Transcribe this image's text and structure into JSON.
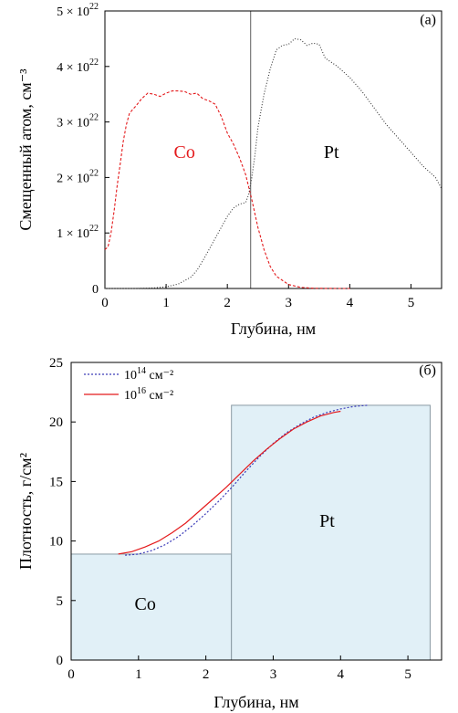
{
  "chart_data": [
    {
      "type": "line",
      "panel_label": "(а)",
      "xlabel": "Глубина, нм",
      "ylabel": "Смещенный атом, см⁻³",
      "xlim": [
        0,
        5.5
      ],
      "ylim": [
        0,
        5e+22
      ],
      "xticks": [
        {
          "v": 0,
          "label": "0"
        },
        {
          "v": 1,
          "label": "1"
        },
        {
          "v": 2,
          "label": "2"
        },
        {
          "v": 3,
          "label": "3"
        },
        {
          "v": 4,
          "label": "4"
        },
        {
          "v": 5,
          "label": "5"
        }
      ],
      "yticks": [
        {
          "v": 0,
          "mant": "0",
          "exp": ""
        },
        {
          "v": 1e+22,
          "mant": "1 × 10",
          "exp": "22"
        },
        {
          "v": 2e+22,
          "mant": "2 × 10",
          "exp": "22"
        },
        {
          "v": 3e+22,
          "mant": "3 × 10",
          "exp": "22"
        },
        {
          "v": 4e+22,
          "mant": "4 × 10",
          "exp": "22"
        },
        {
          "v": 5e+22,
          "mant": "5 × 10",
          "exp": "22"
        }
      ],
      "interface_x": 2.38,
      "series": [
        {
          "name": "Co",
          "color": "#e41a1c",
          "dash": "3,2",
          "x": [
            0,
            0.05,
            0.1,
            0.15,
            0.2,
            0.25,
            0.3,
            0.35,
            0.4,
            0.45,
            0.5,
            0.6,
            0.7,
            0.8,
            0.9,
            1.0,
            1.1,
            1.2,
            1.3,
            1.4,
            1.5,
            1.6,
            1.7,
            1.8,
            1.9,
            2.0,
            2.1,
            2.2,
            2.3,
            2.4,
            2.5,
            2.6,
            2.7,
            2.8,
            3.0,
            3.2,
            3.4,
            3.6,
            3.8,
            4.0
          ],
          "y": [
            7e+21,
            7.5e+21,
            1e+22,
            1.4e+22,
            1.85e+22,
            2.25e+22,
            2.65e+22,
            2.95e+22,
            3.15e+22,
            3.22e+22,
            3.28e+22,
            3.42e+22,
            3.52e+22,
            3.5e+22,
            3.46e+22,
            3.52e+22,
            3.56e+22,
            3.56e+22,
            3.55e+22,
            3.5e+22,
            3.52e+22,
            3.42e+22,
            3.38e+22,
            3.32e+22,
            3.1e+22,
            2.8e+22,
            2.6e+22,
            2.35e+22,
            2.05e+22,
            1.6e+22,
            1.1e+22,
            7e+21,
            4e+21,
            2.2e+21,
            7e+20,
            2e+20,
            5e+19,
            1e+19,
            0,
            0
          ]
        },
        {
          "name": "Pt",
          "color": "#333333",
          "dash": "1,2",
          "x": [
            0,
            0.5,
            0.8,
            1.0,
            1.2,
            1.4,
            1.5,
            1.6,
            1.7,
            1.8,
            1.9,
            2.0,
            2.1,
            2.2,
            2.3,
            2.35,
            2.4,
            2.45,
            2.5,
            2.6,
            2.7,
            2.8,
            2.9,
            3.0,
            3.1,
            3.2,
            3.3,
            3.4,
            3.5,
            3.6,
            3.8,
            4.0,
            4.2,
            4.4,
            4.6,
            4.8,
            5.0,
            5.2,
            5.4,
            5.5
          ],
          "y": [
            0,
            0,
            1e+20,
            3e+20,
            8e+20,
            2e+21,
            3.2e+21,
            5e+21,
            7e+21,
            9e+21,
            1.1e+22,
            1.3e+22,
            1.45e+22,
            1.52e+22,
            1.55e+22,
            1.7e+22,
            2e+22,
            2.4e+22,
            2.9e+22,
            3.5e+22,
            3.95e+22,
            4.3e+22,
            4.38e+22,
            4.4e+22,
            4.5e+22,
            4.48e+22,
            4.38e+22,
            4.42e+22,
            4.4e+22,
            4.15e+22,
            4e+22,
            3.8e+22,
            3.55e+22,
            3.25e+22,
            2.95e+22,
            2.7e+22,
            2.45e+22,
            2.2e+22,
            2e+22,
            1.8e+22
          ]
        }
      ],
      "annotations": [
        {
          "text": "Co",
          "x": 1.3,
          "y": 2.35e+22,
          "color": "#e41a1c"
        },
        {
          "text": "Pt",
          "x": 3.7,
          "y": 2.35e+22,
          "color": "#000000"
        }
      ]
    },
    {
      "type": "area",
      "panel_label": "(б)",
      "xlabel": "Глубина, нм",
      "ylabel": "Плотность, г/см²",
      "xlim": [
        0,
        5.5
      ],
      "ylim": [
        0,
        25
      ],
      "xticks": [
        {
          "v": 0,
          "label": "0"
        },
        {
          "v": 1,
          "label": "1"
        },
        {
          "v": 2,
          "label": "2"
        },
        {
          "v": 3,
          "label": "3"
        },
        {
          "v": 4,
          "label": "4"
        },
        {
          "v": 5,
          "label": "5"
        }
      ],
      "yticks": [
        {
          "v": 0,
          "label": "0"
        },
        {
          "v": 5,
          "label": "5"
        },
        {
          "v": 10,
          "label": "10"
        },
        {
          "v": 15,
          "label": "15"
        },
        {
          "v": 20,
          "label": "20"
        },
        {
          "v": 25,
          "label": "25"
        }
      ],
      "blocks": [
        {
          "name": "Co",
          "x0": 0,
          "x1": 2.38,
          "y": 8.9,
          "fill": "#e1f0f7"
        },
        {
          "name": "Pt",
          "x0": 2.38,
          "x1": 5.33,
          "y": 21.4,
          "fill": "#e1f0f7"
        }
      ],
      "series": [
        {
          "name": "10¹⁴ см⁻²",
          "legend_base": "10",
          "legend_exp": "14",
          "legend_unit": " см⁻²",
          "color": "#3a3ab8",
          "dash": "2,2",
          "x": [
            0.8,
            1.0,
            1.2,
            1.4,
            1.6,
            1.8,
            2.0,
            2.2,
            2.4,
            2.6,
            2.8,
            3.0,
            3.2,
            3.4,
            3.6,
            3.8,
            4.0,
            4.2,
            4.4
          ],
          "y": [
            8.8,
            8.9,
            9.2,
            9.7,
            10.4,
            11.3,
            12.3,
            13.4,
            14.6,
            15.9,
            17.1,
            18.2,
            19.1,
            19.8,
            20.4,
            20.8,
            21.1,
            21.3,
            21.4
          ]
        },
        {
          "name": "10¹⁶ см⁻²",
          "legend_base": "10",
          "legend_exp": "16",
          "legend_unit": " см⁻²",
          "color": "#e41a1c",
          "dash": "",
          "x": [
            0.7,
            0.9,
            1.1,
            1.3,
            1.5,
            1.7,
            1.9,
            2.1,
            2.3,
            2.5,
            2.7,
            2.9,
            3.1,
            3.3,
            3.5,
            3.7,
            3.9,
            4.0
          ],
          "y": [
            8.9,
            9.1,
            9.5,
            10.0,
            10.7,
            11.5,
            12.5,
            13.5,
            14.5,
            15.6,
            16.7,
            17.7,
            18.6,
            19.4,
            20.0,
            20.5,
            20.8,
            20.9
          ]
        }
      ],
      "annotations": [
        {
          "text": "Co",
          "x": 1.1,
          "y": 4.2,
          "color": "#000000"
        },
        {
          "text": "Pt",
          "x": 3.8,
          "y": 11.2,
          "color": "#000000"
        }
      ]
    }
  ]
}
